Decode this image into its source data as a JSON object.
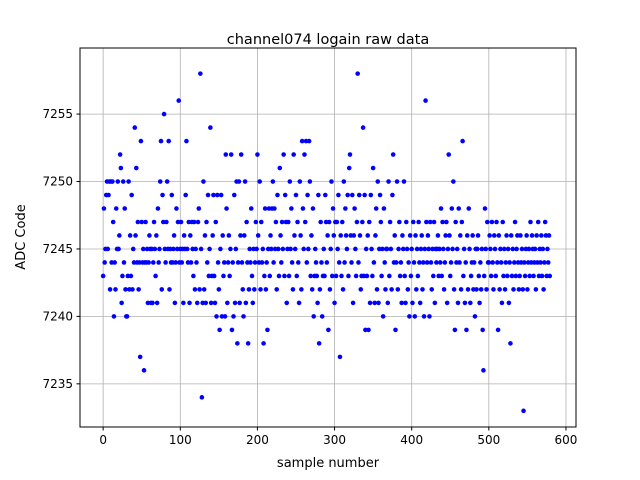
{
  "chart_data": {
    "type": "scatter",
    "title": "channel074 logain raw data",
    "xlabel": "sample number",
    "ylabel": "ADC Code",
    "color": "#0000ff",
    "grid": true,
    "xlim": [
      -30,
      613
    ],
    "ylim": [
      7231.8,
      7259.9
    ],
    "xticks": [
      0,
      100,
      200,
      300,
      400,
      500,
      600
    ],
    "yticks": [
      7235,
      7240,
      7245,
      7250,
      7255
    ],
    "x": [
      0,
      1,
      2,
      3,
      4,
      5,
      6,
      7,
      8,
      9,
      10,
      11,
      12,
      13,
      14,
      15,
      16,
      17,
      18,
      19,
      20,
      21,
      22,
      23,
      24,
      25,
      26,
      27,
      28,
      29,
      30,
      31,
      32,
      33,
      34,
      35,
      36,
      37,
      38,
      39,
      40,
      41,
      42,
      43,
      44,
      45,
      46,
      47,
      48,
      49,
      50,
      51,
      52,
      53,
      54,
      55,
      56,
      57,
      58,
      59,
      60,
      61,
      62,
      63,
      64,
      65,
      66,
      67,
      68,
      69,
      70,
      71,
      72,
      73,
      74,
      75,
      76,
      77,
      78,
      79,
      80,
      81,
      82,
      83,
      84,
      85,
      86,
      87,
      88,
      89,
      90,
      91,
      92,
      93,
      94,
      95,
      96,
      97,
      98,
      99,
      100,
      101,
      102,
      103,
      104,
      105,
      106,
      107,
      108,
      109,
      110,
      111,
      112,
      113,
      114,
      115,
      116,
      117,
      118,
      119,
      120,
      121,
      122,
      123,
      124,
      125,
      126,
      127,
      128,
      129,
      130,
      131,
      132,
      133,
      134,
      135,
      136,
      137,
      138,
      139,
      140,
      141,
      142,
      143,
      144,
      145,
      146,
      147,
      148,
      149,
      150,
      151,
      152,
      153,
      154,
      155,
      156,
      157,
      158,
      159,
      160,
      161,
      162,
      163,
      164,
      165,
      166,
      167,
      168,
      169,
      170,
      171,
      172,
      173,
      174,
      175,
      176,
      177,
      178,
      179,
      180,
      181,
      182,
      183,
      184,
      185,
      186,
      187,
      188,
      189,
      190,
      191,
      192,
      193,
      194,
      195,
      196,
      197,
      198,
      199,
      200,
      201,
      202,
      203,
      204,
      205,
      206,
      207,
      208,
      209,
      210,
      211,
      212,
      213,
      214,
      215,
      216,
      217,
      218,
      219,
      220,
      221,
      222,
      223,
      224,
      225,
      226,
      227,
      228,
      229,
      230,
      231,
      232,
      233,
      234,
      235,
      236,
      237,
      238,
      239,
      240,
      241,
      242,
      243,
      244,
      245,
      246,
      247,
      248,
      249,
      250,
      251,
      252,
      253,
      254,
      255,
      256,
      257,
      258,
      259,
      260,
      261,
      262,
      263,
      264,
      265,
      266,
      267,
      268,
      269,
      270,
      271,
      272,
      273,
      274,
      275,
      276,
      277,
      278,
      279,
      280,
      281,
      282,
      283,
      284,
      285,
      286,
      287,
      288,
      289,
      290,
      291,
      292,
      293,
      294,
      295,
      296,
      297,
      298,
      299,
      300,
      301,
      302,
      303,
      304,
      305,
      306,
      307,
      308,
      309,
      310,
      311,
      312,
      313,
      314,
      315,
      316,
      317,
      318,
      319,
      320,
      321,
      322,
      323,
      324,
      325,
      326,
      327,
      328,
      329,
      330,
      331,
      332,
      333,
      334,
      335,
      336,
      337,
      338,
      339,
      340,
      341,
      342,
      343,
      344,
      345,
      346,
      347,
      348,
      349,
      350,
      351,
      352,
      353,
      354,
      355,
      356,
      357,
      358,
      359,
      360,
      361,
      362,
      363,
      364,
      365,
      366,
      367,
      368,
      369,
      370,
      371,
      372,
      373,
      374,
      375,
      376,
      377,
      378,
      379,
      380,
      381,
      382,
      383,
      384,
      385,
      386,
      387,
      388,
      389,
      390,
      391,
      392,
      393,
      394,
      395,
      396,
      397,
      398,
      399,
      400,
      401,
      402,
      403,
      404,
      405,
      406,
      407,
      408,
      409,
      410,
      411,
      412,
      413,
      414,
      415,
      416,
      417,
      418,
      419,
      420,
      421,
      422,
      423,
      424,
      425,
      426,
      427,
      428,
      429,
      430,
      431,
      432,
      433,
      434,
      435,
      436,
      437,
      438,
      439,
      440,
      441,
      442,
      443,
      444,
      445,
      446,
      447,
      448,
      449,
      450,
      451,
      452,
      453,
      454,
      455,
      456,
      457,
      458,
      459,
      460,
      461,
      462,
      463,
      464,
      465,
      466,
      467,
      468,
      469,
      470,
      471,
      472,
      473,
      474,
      475,
      476,
      477,
      478,
      479,
      480,
      481,
      482,
      483,
      484,
      485,
      486,
      487,
      488,
      489,
      490,
      491,
      492,
      493,
      494,
      495,
      496,
      497,
      498,
      499,
      500,
      501,
      502,
      503,
      504,
      505,
      506,
      507,
      508,
      509,
      510,
      511,
      512,
      513,
      514,
      515,
      516,
      517,
      518,
      519,
      520,
      521,
      522,
      523,
      524,
      525,
      526,
      527,
      528,
      529,
      530,
      531,
      532,
      533,
      534,
      535,
      536,
      537,
      538,
      539,
      540,
      541,
      542,
      543,
      544,
      545,
      546,
      547,
      548,
      549,
      550,
      551,
      552,
      553,
      554,
      555,
      556,
      557,
      558,
      559,
      560,
      561,
      562,
      563,
      564,
      565,
      566,
      567,
      568,
      569,
      570,
      571,
      572,
      573,
      574,
      575,
      576,
      577,
      578,
      579
    ],
    "values": [
      7243,
      7248,
      7244,
      7245,
      7249,
      7250,
      7245,
      7249,
      7250,
      7242,
      7250,
      7244,
      7250,
      7247,
      7240,
      7244,
      7242,
      7248,
      7245,
      7250,
      7245,
      7246,
      7252,
      7251,
      7241,
      7243,
      7250,
      7244,
      7248,
      7242,
      7240,
      7240,
      7243,
      7250,
      7242,
      7246,
      7243,
      7249,
      7242,
      7245,
      7244,
      7254,
      7246,
      7251,
      7244,
      7247,
      7242,
      7244,
      7237,
      7253,
      7247,
      7244,
      7245,
      7236,
      7244,
      7247,
      7244,
      7245,
      7241,
      7244,
      7246,
      7245,
      7241,
      7245,
      7241,
      7244,
      7247,
      7245,
      7243,
      7246,
      7241,
      7248,
      7244,
      7245,
      7250,
      7253,
      7242,
      7249,
      7247,
      7255,
      7245,
      7244,
      7247,
      7250,
      7245,
      7253,
      7242,
      7245,
      7244,
      7249,
      7244,
      7245,
      7246,
      7241,
      7244,
      7248,
      7245,
      7247,
      7256,
      7244,
      7245,
      7247,
      7244,
      7245,
      7241,
      7246,
      7245,
      7249,
      7253,
      7245,
      7244,
      7247,
      7241,
      7246,
      7244,
      7247,
      7245,
      7243,
      7247,
      7242,
      7245,
      7244,
      7241,
      7247,
      7248,
      7242,
      7258,
      7245,
      7234,
      7241,
      7250,
      7242,
      7246,
      7241,
      7247,
      7244,
      7249,
      7243,
      7245,
      7254,
      7241,
      7243,
      7246,
      7249,
      7243,
      7241,
      7247,
      7240,
      7249,
      7244,
      7242,
      7239,
      7245,
      7249,
      7240,
      7246,
      7243,
      7244,
      7240,
      7252,
      7248,
      7241,
      7244,
      7246,
      7243,
      7245,
      7252,
      7239,
      7244,
      7240,
      7249,
      7241,
      7245,
      7250,
      7238,
      7244,
      7250,
      7241,
      7246,
      7252,
      7244,
      7242,
      7240,
      7246,
      7250,
      7241,
      7247,
      7244,
      7238,
      7242,
      7245,
      7244,
      7248,
      7243,
      7241,
      7245,
      7242,
      7244,
      7247,
      7245,
      7252,
      7246,
      7244,
      7250,
      7242,
      7247,
      7244,
      7245,
      7238,
      7243,
      7248,
      7242,
      7244,
      7239,
      7245,
      7248,
      7243,
      7246,
      7245,
      7248,
      7250,
      7244,
      7248,
      7245,
      7247,
      7242,
      7249,
      7245,
      7243,
      7251,
      7246,
      7244,
      7247,
      7245,
      7252,
      7243,
      7249,
      7247,
      7241,
      7245,
      7247,
      7243,
      7250,
      7245,
      7248,
      7244,
      7242,
      7252,
      7246,
      7245,
      7249,
      7243,
      7247,
      7244,
      7241,
      7250,
      7246,
      7242,
      7253,
      7248,
      7245,
      7252,
      7247,
      7253,
      7244,
      7249,
      7245,
      7253,
      7250,
      7243,
      7246,
      7242,
      7248,
      7240,
      7243,
      7245,
      7244,
      7243,
      7241,
      7249,
      7238,
      7242,
      7247,
      7244,
      7240,
      7243,
      7245,
      7243,
      7249,
      7247,
      7244,
      7246,
      7239,
      7247,
      7242,
      7245,
      7250,
      7243,
      7248,
      7246,
      7241,
      7247,
      7243,
      7247,
      7245,
      7249,
      7244,
      7237,
      7246,
      7243,
      7247,
      7242,
      7250,
      7244,
      7248,
      7246,
      7245,
      7249,
      7243,
      7251,
      7252,
      7246,
      7244,
      7249,
      7241,
      7246,
      7248,
      7245,
      7243,
      7247,
      7258,
      7244,
      7249,
      7246,
      7242,
      7243,
      7247,
      7254,
      7243,
      7249,
      7239,
      7245,
      7243,
      7246,
      7239,
      7247,
      7241,
      7249,
      7245,
      7243,
      7251,
      7244,
      7241,
      7246,
      7248,
      7242,
      7250,
      7241,
      7245,
      7249,
      7247,
      7243,
      7245,
      7240,
      7248,
      7244,
      7242,
      7245,
      7245,
      7241,
      7250,
      7243,
      7247,
      7245,
      7242,
      7249,
      7252,
      7244,
      7246,
      7239,
      7244,
      7250,
      7242,
      7245,
      7247,
      7243,
      7244,
      7241,
      7246,
      7245,
      7250,
      7243,
      7241,
      7247,
      7245,
      7242,
      7244,
      7240,
      7246,
      7243,
      7245,
      7241,
      7247,
      7244,
      7240,
      7246,
      7242,
      7245,
      7243,
      7247,
      7244,
      7241,
      7245,
      7246,
      7242,
      7244,
      7240,
      7245,
      7256,
      7247,
      7244,
      7246,
      7245,
      7240,
      7247,
      7244,
      7242,
      7245,
      7243,
      7247,
      7241,
      7245,
      7244,
      7245,
      7246,
      7243,
      7245,
      7244,
      7248,
      7243,
      7247,
      7245,
      7242,
      7244,
      7246,
      7247,
      7241,
      7245,
      7252,
      7246,
      7243,
      7244,
      7248,
      7245,
      7250,
      7242,
      7239,
      7247,
      7244,
      7245,
      7241,
      7248,
      7244,
      7246,
      7242,
      7247,
      7253,
      7243,
      7245,
      7241,
      7244,
      7239,
      7246,
      7242,
      7248,
      7245,
      7241,
      7243,
      7244,
      7246,
      7242,
      7244,
      7240,
      7245,
      7242,
      7245,
      7246,
      7243,
      7241,
      7244,
      7242,
      7245,
      7239,
      7236,
      7243,
      7248,
      7245,
      7242,
      7247,
      7244,
      7244,
      7246,
      7245,
      7243,
      7247,
      7244,
      7242,
      7246,
      7245,
      7243,
      7247,
      7244,
      7239,
      7246,
      7242,
      7245,
      7244,
      7241,
      7247,
      7243,
      7245,
      7242,
      7244,
      7246,
      7243,
      7245,
      7241,
      7244,
      7238,
      7246,
      7243,
      7245,
      7242,
      7244,
      7247,
      7243,
      7245,
      7246,
      7244,
      7242,
      7243,
      7246,
      7244,
      7245,
      7242,
      7233,
      7244,
      7243,
      7245,
      7246,
      7242,
      7244,
      7245,
      7243,
      7247,
      7244,
      7246,
      7245,
      7243,
      7244,
      7245,
      7242,
      7246,
      7244,
      7247,
      7243,
      7245,
      7244,
      7246,
      7243,
      7245,
      7242,
      7244,
      7247,
      7246,
      7243,
      7245,
      7244,
      7246,
      7243
    ]
  }
}
